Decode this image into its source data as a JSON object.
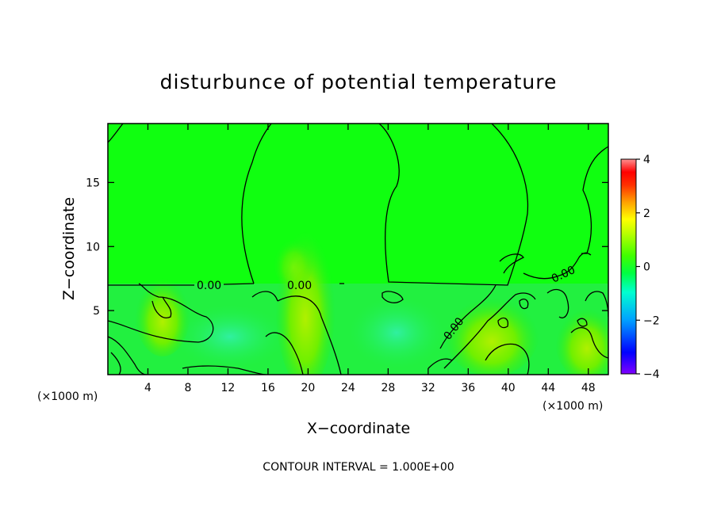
{
  "chart_data": {
    "type": "heatmap",
    "title": "disturbunce of potential temperature",
    "xlabel": "X−coordinate",
    "ylabel": "Z−coordinate",
    "x_unit": "(×1000 m)",
    "y_unit": "(×1000 m)",
    "xlim": [
      0,
      50
    ],
    "ylim": [
      0,
      19.6
    ],
    "x_ticks": [
      4,
      8,
      12,
      16,
      20,
      24,
      28,
      32,
      36,
      40,
      44,
      48
    ],
    "y_ticks": [
      5,
      10,
      15
    ],
    "x_tick_labels": [
      "4",
      "8",
      "12",
      "16",
      "20",
      "24",
      "28",
      "32",
      "36",
      "40",
      "44",
      "48"
    ],
    "y_tick_labels": [
      "5",
      "10",
      "15"
    ],
    "colorbar": {
      "range": [
        -4,
        4
      ],
      "ticks": [
        4,
        2,
        0,
        -2,
        -4
      ],
      "tick_labels": [
        "4",
        "2",
        "0",
        "−2",
        "−4"
      ],
      "colors": [
        "#7f00ff",
        "#0000ff",
        "#00a0ff",
        "#00ffd0",
        "#00ff40",
        "#40ff00",
        "#c0ff00",
        "#ffff00",
        "#ffa000",
        "#ff3000",
        "#ff0000",
        "#ff8080"
      ]
    },
    "contour_labels": [
      "0.00",
      "0.00",
      "0.00",
      "0.00"
    ],
    "footnote": "CONTOUR INTERVAL = 1.000E+00",
    "field_description_values": {
      "upper_region_value": 0.3,
      "lower_region_value": -0.3,
      "interface_height": 7.2,
      "warm_plumes": [
        {
          "x": 19.5,
          "z": 3.0,
          "value": 1.2
        },
        {
          "x": 37.5,
          "z": 2.5,
          "value": 1.0
        },
        {
          "x": 48.0,
          "z": 2.0,
          "value": 1.0
        }
      ]
    }
  }
}
